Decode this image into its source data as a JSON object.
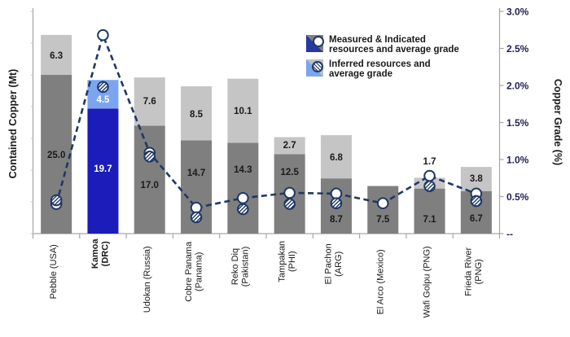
{
  "legend": {
    "items": [
      {
        "line1": "Measured & Indicated",
        "line2": "resources and average grade",
        "icon": "mi-legend-swatch"
      },
      {
        "line1": "Inferred resources and",
        "line2": "average grade",
        "icon": "inferred-legend-swatch"
      }
    ]
  },
  "axes": {
    "left_title": "Contained Copper (Mt)",
    "right_title": "Copper Grade (%)"
  },
  "colors": {
    "bar_dark_gray": "#7f7f7f",
    "bar_light_gray": "#c5c5c5",
    "kamoa_dark_blue": "#1c1cba",
    "kamoa_light_blue": "#7ba5f0",
    "line_navy": "#1f3864",
    "axis_gray": "#a6a6a6",
    "label_dark": "#1a1a1a",
    "right_tick_label": "#1f2050"
  },
  "chart_data": {
    "type": "combo-stacked-bar-line",
    "title": "",
    "categories": [
      {
        "lines": [
          "Pebble (USA)"
        ],
        "bold": false,
        "highlight": false
      },
      {
        "lines": [
          "Kamoa",
          "(DRC)"
        ],
        "bold": true,
        "highlight": true
      },
      {
        "lines": [
          "Udokan (Russia)"
        ],
        "bold": false,
        "highlight": false
      },
      {
        "lines": [
          "Cobre Panama",
          "(Panama)"
        ],
        "bold": false,
        "highlight": false
      },
      {
        "lines": [
          "Reko Diq",
          "(Pakistan)"
        ],
        "bold": false,
        "highlight": false
      },
      {
        "lines": [
          "Tampakan",
          "(PHI)"
        ],
        "bold": false,
        "highlight": false
      },
      {
        "lines": [
          "El Pachon",
          "(ARG)"
        ],
        "bold": false,
        "highlight": false
      },
      {
        "lines": [
          "El Arco (Mexico)"
        ],
        "bold": false,
        "highlight": false
      },
      {
        "lines": [
          "Wafi Golpu (PNG)"
        ],
        "bold": false,
        "highlight": false
      },
      {
        "lines": [
          "Frieda River",
          "(PNG)"
        ],
        "bold": false,
        "highlight": false
      }
    ],
    "bar_series": [
      {
        "name": "Measured & Indicated resources (Mt)",
        "values": [
          25.0,
          19.7,
          17.0,
          14.7,
          14.3,
          12.5,
          8.7,
          7.5,
          7.1,
          6.7
        ]
      },
      {
        "name": "Inferred resources (Mt)",
        "values": [
          6.3,
          4.5,
          7.6,
          8.5,
          10.1,
          2.7,
          6.8,
          null,
          1.7,
          3.8
        ]
      }
    ],
    "line_series": [
      {
        "name": "M&I average grade (%)",
        "values": [
          0.4,
          2.68,
          1.09,
          0.35,
          0.48,
          0.55,
          0.54,
          0.41,
          0.78,
          0.54
        ]
      },
      {
        "name": "Inferred average grade (%)",
        "values": [
          0.45,
          1.98,
          1.04,
          0.22,
          0.33,
          0.4,
          0.41,
          null,
          0.64,
          0.44
        ]
      }
    ],
    "left_axis": {
      "title": "Contained Copper (Mt)",
      "min": 0,
      "max": 35,
      "tick_step": 5,
      "tick_labels_visible": false
    },
    "right_axis": {
      "title": "Copper Grade (%)",
      "min": 0,
      "max": 3,
      "tick_step": 0.5,
      "tick_labels": [
        "3.0%",
        "2.5%",
        "2.0%",
        "1.5%",
        "1.0%",
        "0.5%",
        "--"
      ]
    },
    "grid": false,
    "legend_position": "inside-top-right",
    "label_y_hints": {
      "mi": [
        190,
        207,
        227,
        212,
        208,
        211,
        269,
        269,
        269,
        268
      ],
      "inferred": [
        68,
        122,
        124,
        140,
        136,
        178,
        193,
        null,
        198,
        219
      ]
    }
  }
}
